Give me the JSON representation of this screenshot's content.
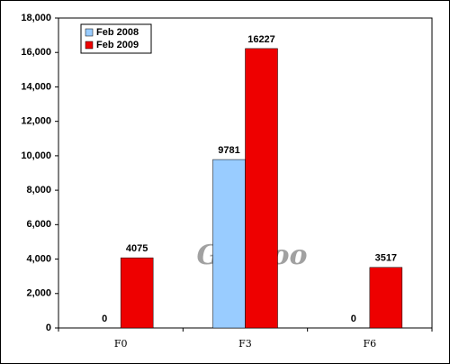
{
  "chart_data": {
    "type": "bar",
    "categories": [
      "F0",
      "F3",
      "F6"
    ],
    "series": [
      {
        "name": "Feb 2008",
        "color": "#99ccff",
        "values": [
          0,
          9781,
          0
        ]
      },
      {
        "name": "Feb 2009",
        "color": "#ee0000",
        "values": [
          4075,
          16227,
          3517
        ]
      }
    ],
    "ylim": [
      0,
      18000
    ],
    "yticks": [
      0,
      {
        "value": 2000,
        "label": "2,000"
      },
      {
        "value": 4000,
        "label": "4,000"
      },
      {
        "value": 6000,
        "label": "6,000"
      },
      {
        "value": 8000,
        "label": "8,000"
      },
      {
        "value": 10000,
        "label": "10,000"
      },
      {
        "value": 12000,
        "label": "12,000"
      },
      {
        "value": 14000,
        "label": "14,000"
      },
      {
        "value": 16000,
        "label": "16,000"
      },
      {
        "value": 18000,
        "label": "18,000"
      }
    ],
    "grid": false,
    "legend": "upper left",
    "watermark": "Gasgoo"
  }
}
